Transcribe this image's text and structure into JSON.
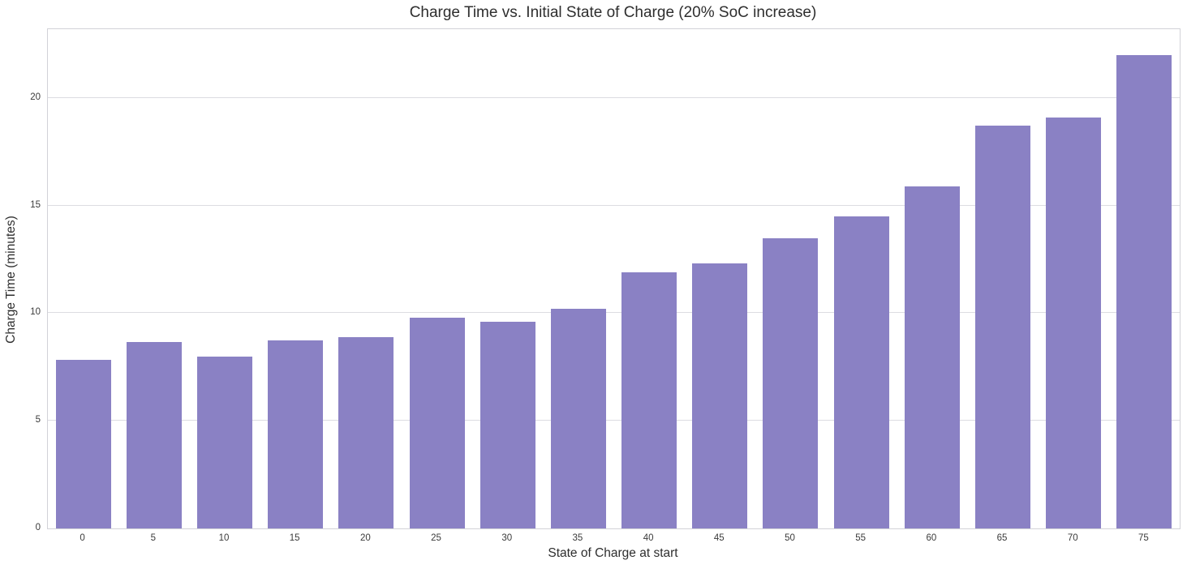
{
  "figure": {
    "background_color": "#ffffff",
    "border_color": "#d2d2d8",
    "grid_color": "#dcdce1"
  },
  "chart_data": {
    "type": "bar",
    "title": "Charge Time vs. Initial State of Charge (20% SoC increase)",
    "xlabel": "State of Charge at start",
    "ylabel": "Charge Time (minutes)",
    "categories": [
      0,
      5,
      10,
      15,
      20,
      25,
      30,
      35,
      40,
      45,
      50,
      55,
      60,
      65,
      70,
      75
    ],
    "values": [
      7.85,
      8.65,
      8.0,
      8.75,
      8.9,
      9.8,
      9.6,
      10.2,
      11.9,
      12.3,
      13.5,
      14.5,
      15.9,
      18.7,
      19.1,
      22.0
    ],
    "yticks": [
      0,
      5,
      10,
      15,
      20
    ],
    "ylim": [
      0,
      23.2
    ],
    "bar_color": "#8a81c4",
    "bar_width_fraction": 0.78,
    "grid": "horizontal",
    "legend": "none"
  }
}
